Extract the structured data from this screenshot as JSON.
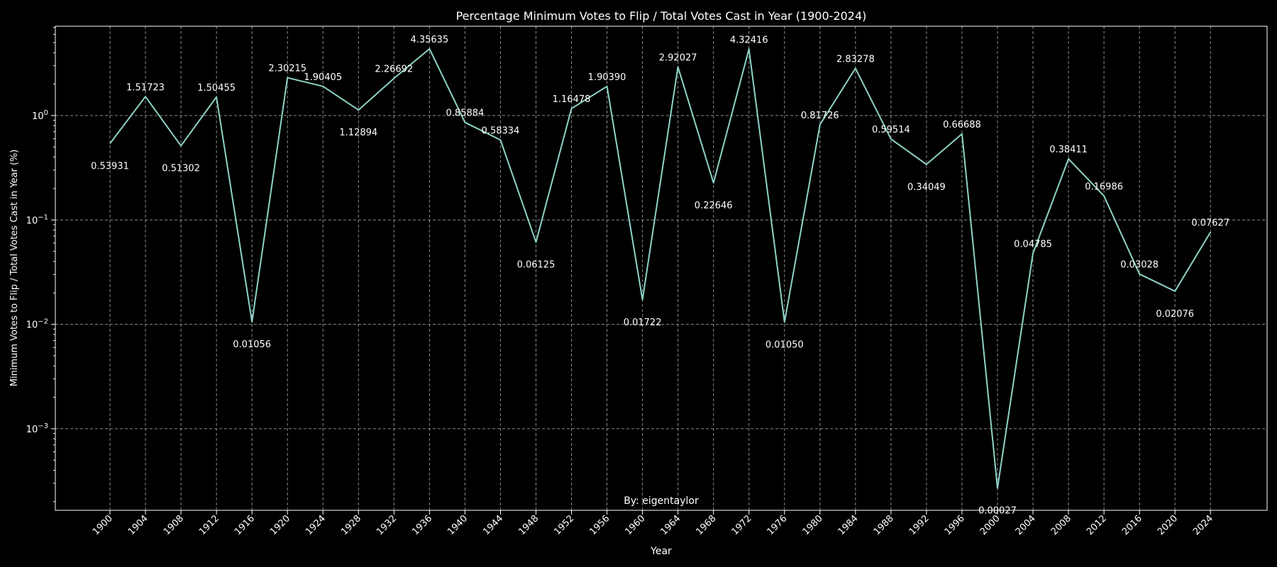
{
  "chart_data": {
    "type": "line",
    "title": "Percentage Minimum Votes to Flip / Total Votes Cast in Year (1900-2024)",
    "xlabel": "Year",
    "ylabel": "Minimum Votes to Flip / Total Votes Cast in Year (%)",
    "yscale": "log",
    "ylim": [
      0.00015,
      7
    ],
    "grid": true,
    "annotation": "By: eigentaylor",
    "line_color": "#8dd3c7",
    "background": "#000000",
    "text_color": "#ffffff",
    "y_ticks": [
      {
        "value": 1,
        "base": "10",
        "exp": "0"
      },
      {
        "value": 0.1,
        "base": "10",
        "exp": "−1"
      },
      {
        "value": 0.01,
        "base": "10",
        "exp": "−2"
      },
      {
        "value": 0.001,
        "base": "10",
        "exp": "−3"
      }
    ],
    "x": [
      "1900",
      "1904",
      "1908",
      "1912",
      "1916",
      "1920",
      "1924",
      "1928",
      "1932",
      "1936",
      "1940",
      "1944",
      "1948",
      "1952",
      "1956",
      "1960",
      "1964",
      "1968",
      "1972",
      "1976",
      "1980",
      "1984",
      "1988",
      "1992",
      "1996",
      "2000",
      "2004",
      "2008",
      "2012",
      "2016",
      "2020",
      "2024"
    ],
    "values": [
      0.53931,
      1.51723,
      0.51302,
      1.50455,
      0.01056,
      2.30215,
      1.90405,
      1.12894,
      2.26692,
      4.35635,
      0.85884,
      0.58334,
      0.06125,
      1.16478,
      1.9039,
      0.01722,
      2.92027,
      0.22646,
      4.32416,
      0.0105,
      0.81726,
      2.83278,
      0.59514,
      0.34049,
      0.66688,
      0.00027,
      0.04785,
      0.38411,
      0.16986,
      0.03028,
      0.02076,
      0.07627
    ],
    "labels": [
      "0.53931",
      "1.51723",
      "0.51302",
      "1.50455",
      "0.01056",
      "2.30215",
      "1.90405",
      "1.12894",
      "2.26692",
      "4.35635",
      "0.85884",
      "0.58334",
      "0.06125",
      "1.16478",
      "1.90390",
      "0.01722",
      "2.92027",
      "0.22646",
      "4.32416",
      "0.01050",
      "0.81726",
      "2.83278",
      "0.59514",
      "0.34049",
      "0.66688",
      "0.00027",
      "0.04785",
      "0.38411",
      "0.16986",
      "0.03028",
      "0.02076",
      "0.07627"
    ]
  }
}
